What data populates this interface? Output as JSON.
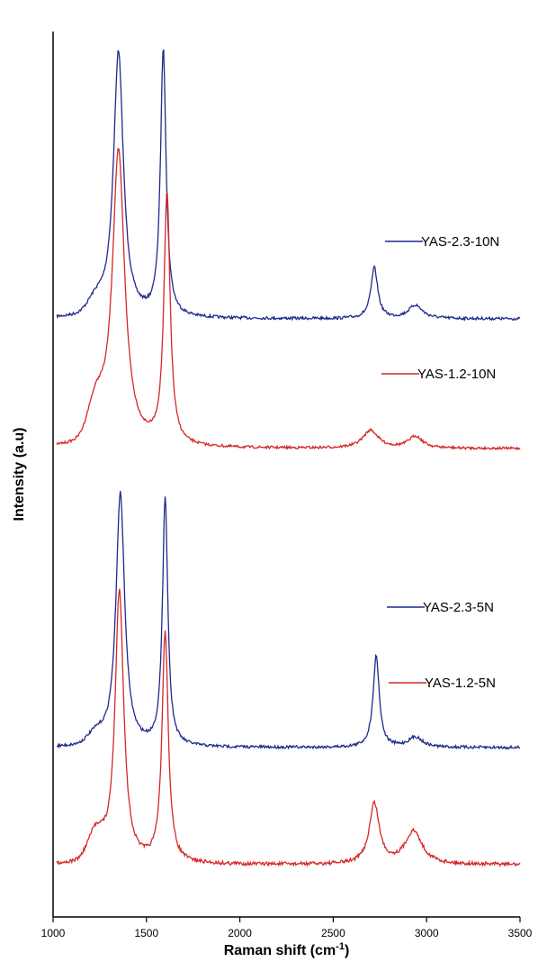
{
  "chart_data": {
    "type": "line",
    "title": "",
    "xlabel": "Raman shift (cm",
    "xlabel_sup": "-1",
    "xlabel_close": ")",
    "ylabel": "Intensity (a.u)",
    "xlim": [
      1000,
      3500
    ],
    "x_ticks": [
      "1000",
      "1500",
      "2000",
      "2500",
      "3000",
      "3500"
    ],
    "y_ticks_shown": false,
    "grid": false,
    "legend": "inline labels to the right of each trace",
    "series": [
      {
        "name": "YAS-2.3-10N",
        "color": "#1f2a8c",
        "peaks": [
          {
            "center": 1350,
            "height": 1.0
          },
          {
            "center": 1590,
            "height": 1.0
          },
          {
            "center": 2720,
            "height": 0.19
          },
          {
            "center": 2940,
            "height": 0.05
          }
        ]
      },
      {
        "name": "YAS-1.2-10N",
        "color": "#d62728",
        "peaks": [
          {
            "center": 1350,
            "height": 1.0
          },
          {
            "center": 1610,
            "height": 0.84
          },
          {
            "center": 2700,
            "height": 0.06
          },
          {
            "center": 2940,
            "height": 0.04
          }
        ]
      },
      {
        "name": "YAS-2.3-5N",
        "color": "#1f2a8c",
        "peaks": [
          {
            "center": 1360,
            "height": 1.0
          },
          {
            "center": 1600,
            "height": 0.98
          },
          {
            "center": 2730,
            "height": 0.36
          },
          {
            "center": 2940,
            "height": 0.04
          }
        ]
      },
      {
        "name": "YAS-1.2-5N",
        "color": "#d62728",
        "peaks": [
          {
            "center": 1355,
            "height": 1.0
          },
          {
            "center": 1600,
            "height": 0.84
          },
          {
            "center": 2720,
            "height": 0.22
          },
          {
            "center": 2930,
            "height": 0.12
          }
        ]
      }
    ]
  }
}
